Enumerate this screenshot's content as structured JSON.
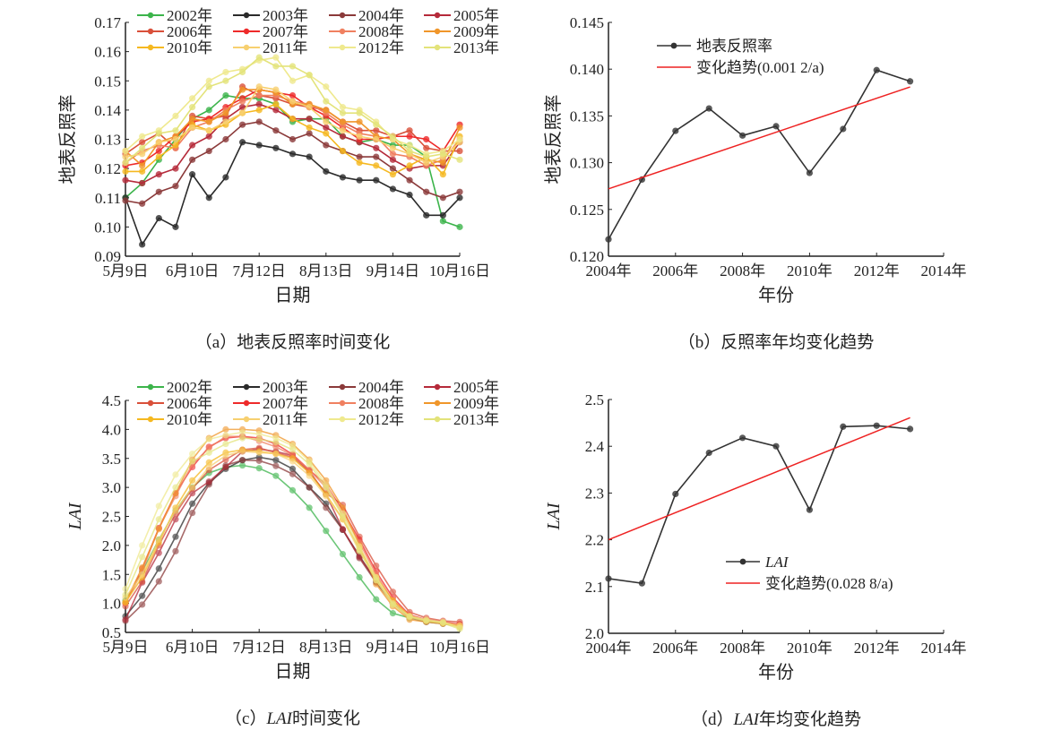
{
  "chart_data": [
    {
      "id": "a",
      "type": "line",
      "caption": "（a）地表反照率时间变化",
      "xlabel": "日期",
      "ylabel": "地表反照率",
      "ylim": [
        0.09,
        0.17
      ],
      "yticks": [
        "0.09",
        "0.10",
        "0.11",
        "0.12",
        "0.13",
        "0.14",
        "0.15",
        "0.16",
        "0.17"
      ],
      "xticks": [
        "5月9日",
        "6月10日",
        "7月12日",
        "8月13日",
        "9月14日",
        "10月16日"
      ],
      "series": [
        {
          "name": "2002年",
          "color": "#3cb44b",
          "values": [
            0.11,
            0.115,
            0.123,
            0.13,
            0.137,
            0.14,
            0.145,
            0.144,
            0.144,
            0.142,
            0.136,
            0.137,
            0.137,
            0.131,
            0.129,
            0.13,
            0.128,
            0.128,
            0.124,
            0.102,
            0.1
          ]
        },
        {
          "name": "2003年",
          "color": "#2b2b2b",
          "values": [
            0.11,
            0.094,
            0.103,
            0.1,
            0.118,
            0.11,
            0.117,
            0.129,
            0.128,
            0.127,
            0.125,
            0.124,
            0.119,
            0.117,
            0.116,
            0.116,
            0.113,
            0.111,
            0.104,
            0.104,
            0.11
          ]
        },
        {
          "name": "2004年",
          "color": "#8b3a3a",
          "values": [
            0.109,
            0.108,
            0.112,
            0.114,
            0.123,
            0.126,
            0.13,
            0.135,
            0.136,
            0.133,
            0.13,
            0.132,
            0.128,
            0.126,
            0.124,
            0.124,
            0.12,
            0.116,
            0.112,
            0.11,
            0.112
          ]
        },
        {
          "name": "2005年",
          "color": "#b52a3a",
          "values": [
            0.116,
            0.115,
            0.118,
            0.12,
            0.128,
            0.131,
            0.137,
            0.141,
            0.142,
            0.14,
            0.137,
            0.137,
            0.134,
            0.131,
            0.129,
            0.127,
            0.123,
            0.12,
            0.121,
            0.121,
            0.129
          ]
        },
        {
          "name": "2006年",
          "color": "#d9503a",
          "values": [
            0.125,
            0.129,
            0.132,
            0.127,
            0.138,
            0.137,
            0.138,
            0.148,
            0.145,
            0.144,
            0.142,
            0.141,
            0.14,
            0.136,
            0.133,
            0.133,
            0.131,
            0.133,
            0.127,
            0.126,
            0.126
          ]
        },
        {
          "name": "2007年",
          "color": "#ee2a2a",
          "values": [
            0.121,
            0.122,
            0.126,
            0.131,
            0.136,
            0.137,
            0.141,
            0.144,
            0.147,
            0.146,
            0.145,
            0.141,
            0.138,
            0.134,
            0.13,
            0.13,
            0.131,
            0.131,
            0.13,
            0.126,
            0.135
          ]
        },
        {
          "name": "2008年",
          "color": "#f08060",
          "values": [
            0.122,
            0.126,
            0.128,
            0.127,
            0.134,
            0.136,
            0.14,
            0.143,
            0.145,
            0.145,
            0.143,
            0.142,
            0.139,
            0.135,
            0.132,
            0.131,
            0.125,
            0.124,
            0.121,
            0.123,
            0.13
          ]
        },
        {
          "name": "2009年",
          "color": "#f0962a",
          "values": [
            0.126,
            0.121,
            0.129,
            0.131,
            0.137,
            0.136,
            0.139,
            0.147,
            0.147,
            0.146,
            0.142,
            0.142,
            0.14,
            0.136,
            0.136,
            0.131,
            0.13,
            0.125,
            0.123,
            0.122,
            0.134
          ]
        },
        {
          "name": "2010年",
          "color": "#f5b820",
          "values": [
            0.119,
            0.119,
            0.124,
            0.128,
            0.135,
            0.133,
            0.135,
            0.139,
            0.14,
            0.142,
            0.137,
            0.134,
            0.132,
            0.126,
            0.122,
            0.121,
            0.118,
            0.121,
            0.124,
            0.118,
            0.131
          ]
        },
        {
          "name": "2011年",
          "color": "#f7d070",
          "values": [
            0.124,
            0.125,
            0.129,
            0.13,
            0.134,
            0.133,
            0.136,
            0.139,
            0.148,
            0.147,
            0.143,
            0.141,
            0.136,
            0.133,
            0.131,
            0.13,
            0.127,
            0.125,
            0.122,
            0.124,
            0.129
          ]
        },
        {
          "name": "2012年",
          "color": "#efe98e",
          "values": [
            0.126,
            0.131,
            0.133,
            0.138,
            0.144,
            0.15,
            0.153,
            0.154,
            0.157,
            0.158,
            0.15,
            0.152,
            0.148,
            0.141,
            0.14,
            0.136,
            0.13,
            0.128,
            0.125,
            0.126,
            0.13
          ]
        },
        {
          "name": "2013年",
          "color": "#e3e37a",
          "values": [
            0.122,
            0.127,
            0.132,
            0.133,
            0.141,
            0.148,
            0.15,
            0.153,
            0.158,
            0.155,
            0.155,
            0.152,
            0.143,
            0.139,
            0.139,
            0.135,
            0.131,
            0.126,
            0.124,
            0.125,
            0.123
          ]
        }
      ]
    },
    {
      "id": "b",
      "type": "line",
      "caption": "（b）反照率年均变化趋势",
      "xlabel": "年份",
      "ylabel": "地表反照率",
      "ylim": [
        0.12,
        0.145
      ],
      "xlim": [
        2004,
        2014
      ],
      "yticks": [
        "0.120",
        "0.125",
        "0.130",
        "0.135",
        "0.140",
        "0.145"
      ],
      "xticks": [
        "2004年",
        "2006年",
        "2008年",
        "2010年",
        "2012年",
        "2014年"
      ],
      "x": [
        2004,
        2005,
        2006,
        2007,
        2008,
        2009,
        2010,
        2011,
        2012,
        2013
      ],
      "series": [
        {
          "name": "地表反照率",
          "color": "#333333",
          "values": [
            0.1218,
            0.1282,
            0.1334,
            0.1358,
            0.1329,
            0.1339,
            0.1289,
            0.1336,
            0.1399,
            0.1387
          ]
        }
      ],
      "trend": {
        "name": "变化趋势(0.001 2/a)",
        "color": "#ee2222",
        "x": [
          2004,
          2013
        ],
        "values": [
          0.1272,
          0.1381
        ]
      }
    },
    {
      "id": "c",
      "type": "line",
      "caption_prefix": "（c）",
      "caption_italic": "LAI",
      "caption_suffix": "时间变化",
      "xlabel": "日期",
      "ylabel": "LAI",
      "ylim": [
        0.5,
        4.5
      ],
      "yticks": [
        "0.5",
        "1.0",
        "1.5",
        "2.0",
        "2.5",
        "3.0",
        "3.5",
        "4.0",
        "4.5"
      ],
      "xticks": [
        "5月9日",
        "6月10日",
        "7月12日",
        "8月13日",
        "9月14日",
        "10月16日"
      ],
      "series": [
        {
          "name": "2002年",
          "color": "#3cb44b",
          "values": [
            1.05,
            1.55,
            2.1,
            2.6,
            3.0,
            3.25,
            3.35,
            3.38,
            3.33,
            3.2,
            2.95,
            2.65,
            2.25,
            1.85,
            1.45,
            1.07,
            0.83,
            0.75,
            0.7,
            0.67,
            0.63
          ]
        },
        {
          "name": "2003年",
          "color": "#2b2b2b",
          "values": [
            0.78,
            1.13,
            1.6,
            2.15,
            2.72,
            3.08,
            3.32,
            3.47,
            3.52,
            3.47,
            3.32,
            3.0,
            2.72,
            2.27,
            1.82,
            1.38,
            1.0,
            0.75,
            0.68,
            0.65,
            0.62
          ]
        },
        {
          "name": "2004年",
          "color": "#8b3a3a",
          "values": [
            0.7,
            0.98,
            1.38,
            1.9,
            2.56,
            3.05,
            3.38,
            3.47,
            3.46,
            3.37,
            3.23,
            3.0,
            2.65,
            2.27,
            1.78,
            1.36,
            1.0,
            0.77,
            0.7,
            0.66,
            0.62
          ]
        },
        {
          "name": "2005年",
          "color": "#b52a3a",
          "values": [
            0.72,
            1.36,
            1.87,
            2.45,
            2.9,
            3.1,
            3.35,
            3.62,
            3.66,
            3.62,
            3.55,
            3.28,
            2.88,
            2.28,
            1.8,
            1.4,
            1.0,
            0.78,
            0.7,
            0.66,
            0.64
          ]
        },
        {
          "name": "2006年",
          "color": "#d9503a",
          "values": [
            0.95,
            1.38,
            2.0,
            2.55,
            2.98,
            3.3,
            3.48,
            3.65,
            3.68,
            3.6,
            3.52,
            3.26,
            2.9,
            2.7,
            2.15,
            1.65,
            1.2,
            0.85,
            0.75,
            0.7,
            0.68
          ]
        },
        {
          "name": "2007年",
          "color": "#ee2a2a",
          "values": [
            1.0,
            1.6,
            2.3,
            2.9,
            3.35,
            3.7,
            3.85,
            3.88,
            3.85,
            3.75,
            3.57,
            3.3,
            3.05,
            2.6,
            2.1,
            1.55,
            1.1,
            0.8,
            0.72,
            0.68,
            0.64
          ]
        },
        {
          "name": "2008年",
          "color": "#f08060",
          "values": [
            1.0,
            1.55,
            2.3,
            2.85,
            3.4,
            3.68,
            3.88,
            3.88,
            3.8,
            3.7,
            3.55,
            3.3,
            3.0,
            2.55,
            2.05,
            1.5,
            1.05,
            0.8,
            0.72,
            0.68,
            0.63
          ]
        },
        {
          "name": "2009年",
          "color": "#f0962a",
          "values": [
            1.02,
            1.62,
            2.28,
            2.9,
            3.48,
            3.85,
            4.0,
            4.0,
            3.98,
            3.9,
            3.75,
            3.48,
            3.12,
            2.65,
            2.0,
            1.33,
            0.95,
            0.72,
            0.68,
            0.65,
            0.6
          ]
        },
        {
          "name": "2010年",
          "color": "#f5b820",
          "values": [
            1.02,
            1.45,
            2.05,
            2.65,
            3.12,
            3.43,
            3.6,
            3.65,
            3.62,
            3.58,
            3.5,
            3.25,
            2.88,
            2.45,
            1.95,
            1.45,
            1.05,
            0.78,
            0.7,
            0.66,
            0.6
          ]
        },
        {
          "name": "2011年",
          "color": "#f7d070",
          "values": [
            1.1,
            1.5,
            2.1,
            2.6,
            3.0,
            3.35,
            3.55,
            3.62,
            3.6,
            3.58,
            3.45,
            3.2,
            2.85,
            2.45,
            1.9,
            1.4,
            0.98,
            0.75,
            0.7,
            0.67,
            0.62
          ]
        },
        {
          "name": "2012年",
          "color": "#efe98e",
          "values": [
            1.25,
            2.0,
            2.68,
            3.22,
            3.58,
            3.83,
            3.9,
            3.95,
            3.92,
            3.85,
            3.72,
            3.45,
            3.05,
            2.55,
            1.98,
            1.45,
            1.0,
            0.78,
            0.72,
            0.68,
            0.58
          ]
        },
        {
          "name": "2013年",
          "color": "#e3e37a",
          "values": [
            1.15,
            1.8,
            2.45,
            3.0,
            3.45,
            3.6,
            3.75,
            3.85,
            3.83,
            3.78,
            3.65,
            3.4,
            3.0,
            2.5,
            1.92,
            1.4,
            0.98,
            0.77,
            0.7,
            0.66,
            0.56
          ]
        }
      ]
    },
    {
      "id": "d",
      "type": "line",
      "caption_prefix": "（d）",
      "caption_italic": "LAI",
      "caption_suffix": "年均变化趋势",
      "xlabel": "年份",
      "ylabel": "LAI",
      "ylim": [
        2.0,
        2.5
      ],
      "xlim": [
        2004,
        2014
      ],
      "yticks": [
        "2.0",
        "2.1",
        "2.2",
        "2.3",
        "2.4",
        "2.5"
      ],
      "xticks": [
        "2004年",
        "2006年",
        "2008年",
        "2010年",
        "2012年",
        "2014年"
      ],
      "x": [
        2004,
        2005,
        2006,
        2007,
        2008,
        2009,
        2010,
        2011,
        2012,
        2013
      ],
      "series": [
        {
          "name": "LAI",
          "color": "#333333",
          "values": [
            2.117,
            2.107,
            2.298,
            2.386,
            2.418,
            2.4,
            2.264,
            2.442,
            2.444,
            2.437
          ]
        }
      ],
      "trend": {
        "name": "变化趋势(0.028 8/a)",
        "color": "#ee2222",
        "x": [
          2004,
          2013
        ],
        "values": [
          2.2,
          2.461
        ]
      }
    }
  ]
}
